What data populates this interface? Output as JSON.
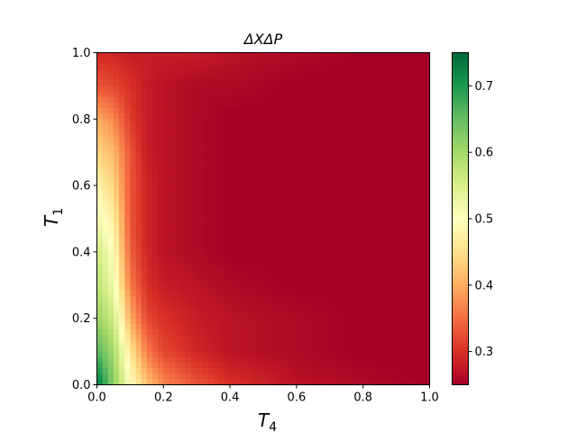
{
  "chart_data": {
    "type": "heatmap",
    "title": "ΔXΔP",
    "xlabel": {
      "main": "T",
      "sub": "4"
    },
    "ylabel": {
      "main": "T",
      "sub": "1"
    },
    "xlim": [
      0.0,
      1.0
    ],
    "ylim": [
      0.0,
      1.0
    ],
    "x_ticks": [
      "0.0",
      "0.2",
      "0.4",
      "0.6",
      "0.8",
      "1.0"
    ],
    "y_ticks": [
      "0.0",
      "0.2",
      "0.4",
      "0.6",
      "0.8",
      "1.0"
    ],
    "colormap": "RdYlGn",
    "colorbar": {
      "range": [
        0.25,
        0.75
      ],
      "ticks": [
        "0.3",
        "0.4",
        "0.5",
        "0.6",
        "0.7"
      ]
    },
    "x": [
      0.0,
      0.05,
      0.1,
      0.15,
      0.2,
      0.3,
      0.4,
      0.6,
      0.8,
      1.0
    ],
    "y": [
      0.0,
      0.1,
      0.2,
      0.3,
      0.4,
      0.5,
      0.6,
      0.7,
      0.8,
      0.9,
      1.0
    ],
    "z": [
      [
        0.74,
        0.62,
        0.5,
        0.42,
        0.37,
        0.33,
        0.3,
        0.27,
        0.26,
        0.25
      ],
      [
        0.66,
        0.6,
        0.46,
        0.36,
        0.32,
        0.29,
        0.27,
        0.26,
        0.25,
        0.25
      ],
      [
        0.61,
        0.56,
        0.4,
        0.32,
        0.3,
        0.28,
        0.27,
        0.26,
        0.25,
        0.25
      ],
      [
        0.58,
        0.52,
        0.36,
        0.3,
        0.28,
        0.27,
        0.26,
        0.25,
        0.25,
        0.25
      ],
      [
        0.56,
        0.5,
        0.34,
        0.29,
        0.27,
        0.26,
        0.25,
        0.25,
        0.25,
        0.25
      ],
      [
        0.52,
        0.47,
        0.33,
        0.29,
        0.27,
        0.26,
        0.25,
        0.25,
        0.25,
        0.25
      ],
      [
        0.48,
        0.44,
        0.33,
        0.29,
        0.27,
        0.26,
        0.25,
        0.25,
        0.25,
        0.25
      ],
      [
        0.44,
        0.41,
        0.33,
        0.28,
        0.27,
        0.26,
        0.25,
        0.25,
        0.25,
        0.25
      ],
      [
        0.4,
        0.37,
        0.31,
        0.28,
        0.27,
        0.26,
        0.25,
        0.25,
        0.25,
        0.25
      ],
      [
        0.33,
        0.32,
        0.3,
        0.28,
        0.27,
        0.26,
        0.26,
        0.25,
        0.25,
        0.25
      ],
      [
        0.29,
        0.29,
        0.28,
        0.28,
        0.28,
        0.28,
        0.27,
        0.26,
        0.25,
        0.25
      ]
    ]
  }
}
